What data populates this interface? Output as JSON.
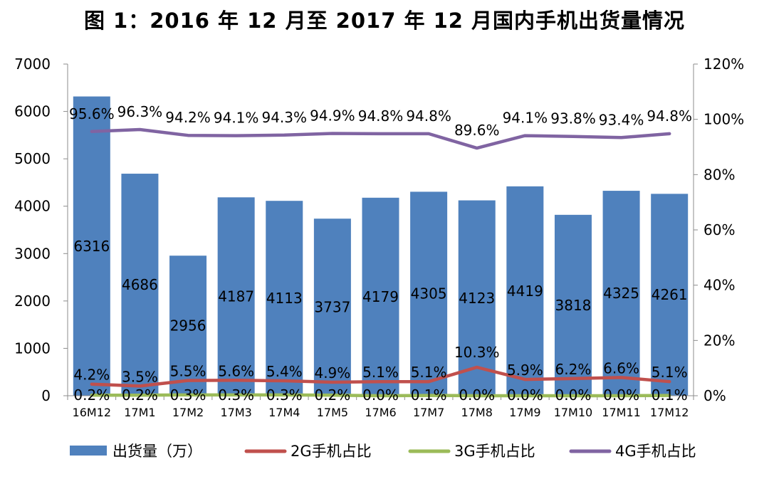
{
  "title": "图 1：2016 年 12 月至 2017 年 12 月国内手机出货量情况",
  "chart_data": {
    "type": "bar",
    "title": "图 1：2016 年 12 月至 2017 年 12 月国内手机出货量情况",
    "categories": [
      "16M12",
      "17M1",
      "17M2",
      "17M3",
      "17M4",
      "17M5",
      "17M6",
      "17M7",
      "17M8",
      "17M9",
      "17M10",
      "17M11",
      "17M12"
    ],
    "bar_series": {
      "name": "出货量（万）",
      "color": "#4f81bd",
      "axis": "left",
      "values": [
        6316,
        4686,
        2956,
        4187,
        4113,
        3737,
        4179,
        4305,
        4123,
        4419,
        3818,
        4325,
        4261
      ],
      "labels": [
        "6316",
        "4686",
        "2956",
        "4187",
        "4113",
        "3737",
        "4179",
        "4305",
        "4123",
        "4419",
        "3818",
        "4325",
        "4261"
      ]
    },
    "line_series": [
      {
        "name": "2G手机占比",
        "color": "#c0504d",
        "axis": "right",
        "values": [
          4.2,
          3.5,
          5.5,
          5.6,
          5.4,
          4.9,
          5.1,
          5.1,
          10.3,
          5.9,
          6.2,
          6.6,
          5.1
        ],
        "labels": [
          "4.2%",
          "3.5%",
          "5.5%",
          "5.6%",
          "5.4%",
          "4.9%",
          "5.1%",
          "5.1%",
          "10.3%",
          "5.9%",
          "6.2%",
          "6.6%",
          "5.1%"
        ]
      },
      {
        "name": "3G手机占比",
        "color": "#9bbb59",
        "axis": "right",
        "values": [
          0.2,
          0.2,
          0.3,
          0.3,
          0.3,
          0.2,
          0.0,
          0.1,
          0.0,
          0.0,
          0.0,
          0.0,
          0.1
        ],
        "labels": [
          "0.2%",
          "0.2%",
          "0.3%",
          "0.3%",
          "0.3%",
          "0.2%",
          "0.0%",
          "0.1%",
          "0.0%",
          "0.0%",
          "0.0%",
          "0.0%",
          "0.1%"
        ]
      },
      {
        "name": "4G手机占比",
        "color": "#8064a2",
        "axis": "right",
        "values": [
          95.6,
          96.3,
          94.2,
          94.1,
          94.3,
          94.9,
          94.8,
          94.8,
          89.6,
          94.1,
          93.8,
          93.4,
          94.8
        ],
        "labels": [
          "95.6%",
          "96.3%",
          "94.2%",
          "94.1%",
          "94.3%",
          "94.9%",
          "94.8%",
          "94.8%",
          "89.6%",
          "94.1%",
          "93.8%",
          "93.4%",
          "94.8%"
        ]
      }
    ],
    "left_axis": {
      "min": 0,
      "max": 7000,
      "ticks": [
        "0",
        "1000",
        "2000",
        "3000",
        "4000",
        "5000",
        "6000",
        "7000"
      ]
    },
    "right_axis": {
      "min": 0,
      "max": 120,
      "ticks": [
        "0%",
        "20%",
        "40%",
        "60%",
        "80%",
        "100%",
        "120%"
      ]
    },
    "grid": false,
    "legend": {
      "position": "bottom",
      "entries": [
        "出货量（万）",
        "2G手机占比",
        "3G手机占比",
        "4G手机占比"
      ]
    }
  }
}
